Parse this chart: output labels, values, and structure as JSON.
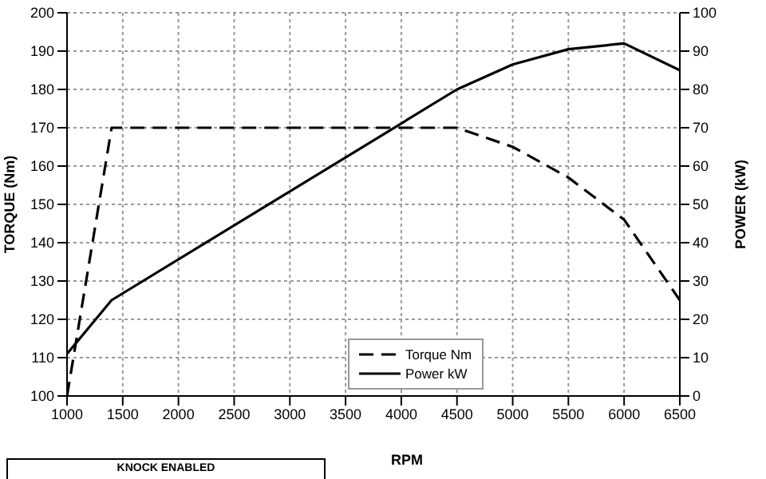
{
  "chart_data": {
    "type": "line",
    "xlabel": "RPM",
    "ylabel": "TORQUE (Nm)",
    "y2label": "POWER (kW)",
    "x": [
      1000,
      1400,
      4500,
      5000,
      5500,
      6000,
      6500
    ],
    "series": [
      {
        "name": "Torque Nm",
        "color": "#000000",
        "line_style": "dashed",
        "values": [
          100,
          170,
          170,
          165,
          157,
          146,
          125
        ]
      },
      {
        "name": "Power kW",
        "color": "#000000",
        "line_style": "solid",
        "axis": "y2",
        "values": [
          11,
          25,
          80,
          86.5,
          90.5,
          92,
          85
        ]
      }
    ],
    "xlim": [
      1000,
      6500
    ],
    "xticks": [
      1000,
      1500,
      2000,
      2500,
      3000,
      3500,
      4000,
      4500,
      5000,
      5500,
      6000,
      6500
    ],
    "ylim": [
      100,
      200
    ],
    "yticks": [
      100,
      110,
      120,
      130,
      140,
      150,
      160,
      170,
      180,
      190,
      200
    ],
    "y2lim": [
      0,
      100
    ],
    "y2ticks": [
      0,
      10,
      20,
      30,
      40,
      50,
      60,
      70,
      80,
      90,
      100
    ],
    "grid": true,
    "legend": "bottom",
    "marker": "none",
    "annotations": [
      "KNOCK ENABLED"
    ]
  }
}
